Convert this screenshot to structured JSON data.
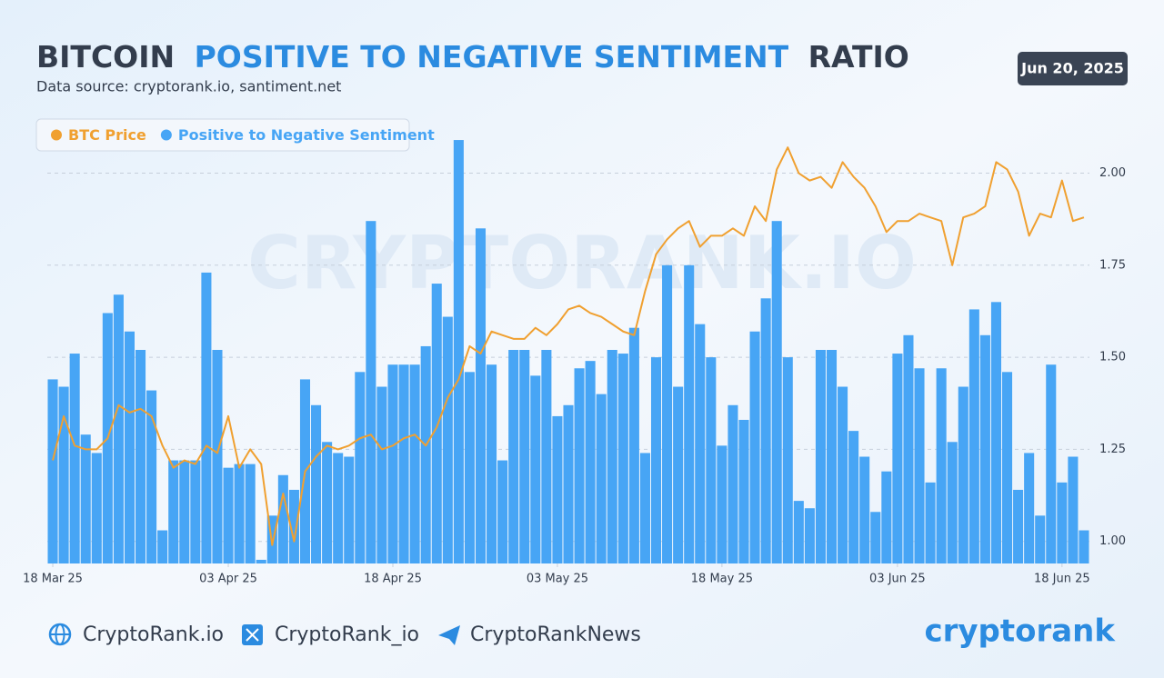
{
  "chart_data": {
    "type": "bar",
    "title_parts": [
      "BITCOIN",
      "POSITIVE TO NEGATIVE SENTIMENT",
      "RATIO"
    ],
    "subtitle": "Data source: cryptorank.io, santiment.net",
    "date_badge": "Jun 20, 2025",
    "watermark": "CRYPTORANK.IO",
    "x": [
      "2025-03-18",
      "2025-03-19",
      "2025-03-20",
      "2025-03-21",
      "2025-03-22",
      "2025-03-23",
      "2025-03-24",
      "2025-03-25",
      "2025-03-26",
      "2025-03-27",
      "2025-03-28",
      "2025-03-29",
      "2025-03-30",
      "2025-03-31",
      "2025-04-01",
      "2025-04-02",
      "2025-04-03",
      "2025-04-04",
      "2025-04-05",
      "2025-04-06",
      "2025-04-07",
      "2025-04-08",
      "2025-04-09",
      "2025-04-10",
      "2025-04-11",
      "2025-04-12",
      "2025-04-13",
      "2025-04-14",
      "2025-04-15",
      "2025-04-16",
      "2025-04-17",
      "2025-04-18",
      "2025-04-19",
      "2025-04-20",
      "2025-04-21",
      "2025-04-22",
      "2025-04-23",
      "2025-04-24",
      "2025-04-25",
      "2025-04-26",
      "2025-04-27",
      "2025-04-28",
      "2025-04-29",
      "2025-04-30",
      "2025-05-01",
      "2025-05-02",
      "2025-05-03",
      "2025-05-04",
      "2025-05-05",
      "2025-05-06",
      "2025-05-07",
      "2025-05-08",
      "2025-05-09",
      "2025-05-10",
      "2025-05-11",
      "2025-05-12",
      "2025-05-13",
      "2025-05-14",
      "2025-05-15",
      "2025-05-16",
      "2025-05-17",
      "2025-05-18",
      "2025-05-19",
      "2025-05-20",
      "2025-05-21",
      "2025-05-22",
      "2025-05-23",
      "2025-05-24",
      "2025-05-25",
      "2025-05-26",
      "2025-05-27",
      "2025-05-28",
      "2025-05-29",
      "2025-05-30",
      "2025-05-31",
      "2025-06-01",
      "2025-06-02",
      "2025-06-03",
      "2025-06-04",
      "2025-06-05",
      "2025-06-06",
      "2025-06-07",
      "2025-06-08",
      "2025-06-09",
      "2025-06-10",
      "2025-06-11",
      "2025-06-12",
      "2025-06-13",
      "2025-06-14",
      "2025-06-15",
      "2025-06-16",
      "2025-06-17",
      "2025-06-18",
      "2025-06-19",
      "2025-06-20"
    ],
    "series": [
      {
        "name": "BTC Price",
        "type": "line",
        "color": "#f0a030",
        "values": [
          1.22,
          1.34,
          1.26,
          1.25,
          1.25,
          1.28,
          1.37,
          1.35,
          1.36,
          1.34,
          1.26,
          1.2,
          1.22,
          1.21,
          1.26,
          1.24,
          1.34,
          1.2,
          1.25,
          1.21,
          0.99,
          1.13,
          1.0,
          1.19,
          1.23,
          1.26,
          1.25,
          1.26,
          1.28,
          1.29,
          1.25,
          1.26,
          1.28,
          1.29,
          1.26,
          1.31,
          1.39,
          1.44,
          1.53,
          1.51,
          1.57,
          1.56,
          1.55,
          1.55,
          1.58,
          1.56,
          1.59,
          1.63,
          1.64,
          1.62,
          1.61,
          1.59,
          1.57,
          1.56,
          1.68,
          1.78,
          1.82,
          1.85,
          1.87,
          1.8,
          1.83,
          1.83,
          1.85,
          1.83,
          1.91,
          1.87,
          2.01,
          2.07,
          2.0,
          1.98,
          1.99,
          1.96,
          2.03,
          1.99,
          1.96,
          1.91,
          1.84,
          1.87,
          1.87,
          1.89,
          1.88,
          1.87,
          1.75,
          1.88,
          1.89,
          1.91,
          2.03,
          2.01,
          1.95,
          1.83,
          1.89,
          1.88,
          1.98,
          1.87,
          1.88
        ]
      },
      {
        "name": "Positive to Negative Sentiment",
        "type": "bar",
        "color": "#47a5f5",
        "values": [
          1.44,
          1.42,
          1.51,
          1.29,
          1.24,
          1.62,
          1.67,
          1.57,
          1.52,
          1.41,
          1.03,
          1.22,
          1.22,
          1.22,
          1.73,
          1.52,
          1.2,
          1.21,
          1.21,
          0.95,
          1.07,
          1.18,
          1.14,
          1.44,
          1.37,
          1.27,
          1.24,
          1.23,
          1.46,
          1.87,
          1.42,
          1.48,
          1.48,
          1.48,
          1.53,
          1.7,
          1.61,
          2.09,
          1.46,
          1.85,
          1.48,
          1.22,
          1.52,
          1.52,
          1.45,
          1.52,
          1.34,
          1.37,
          1.47,
          1.49,
          1.4,
          1.52,
          1.51,
          1.58,
          1.24,
          1.5,
          1.75,
          1.42,
          1.75,
          1.59,
          1.5,
          1.26,
          1.37,
          1.33,
          1.57,
          1.66,
          1.87,
          1.5,
          1.11,
          1.09,
          1.52,
          1.52,
          1.42,
          1.3,
          1.23,
          1.08,
          1.19,
          1.51,
          1.56,
          1.47,
          1.16,
          1.47,
          1.27,
          1.42,
          1.63,
          1.56,
          1.65,
          1.46,
          1.14,
          1.24,
          1.07,
          1.48,
          1.16,
          1.23,
          1.03
        ]
      }
    ],
    "xlim": [
      "2025-03-18",
      "2025-06-21"
    ],
    "xticks": [
      {
        "value": "2025-03-18",
        "label": "18 Mar 25"
      },
      {
        "value": "2025-04-03",
        "label": "03 Apr 25"
      },
      {
        "value": "2025-04-18",
        "label": "18 Apr 25"
      },
      {
        "value": "2025-05-03",
        "label": "03 May 25"
      },
      {
        "value": "2025-05-18",
        "label": "18 May 25"
      },
      {
        "value": "2025-06-03",
        "label": "03 Jun 25"
      },
      {
        "value": "2025-06-18",
        "label": "18 Jun 25"
      }
    ],
    "ylim": [
      0.94,
      2.1
    ],
    "yticks": [
      {
        "value": 1,
        "label": "1.00"
      },
      {
        "value": 1.25,
        "label": "1.25"
      },
      {
        "value": 1.5,
        "label": "1.50"
      },
      {
        "value": 1.75,
        "label": "1.75"
      },
      {
        "value": 2,
        "label": "2.00"
      }
    ],
    "grid": true,
    "legend": "top-left",
    "footer": {
      "website": "CryptoRank.io",
      "twitter": "CryptoRank_io",
      "telegram": "CryptoRankNews",
      "logo": "cryptorank"
    }
  }
}
